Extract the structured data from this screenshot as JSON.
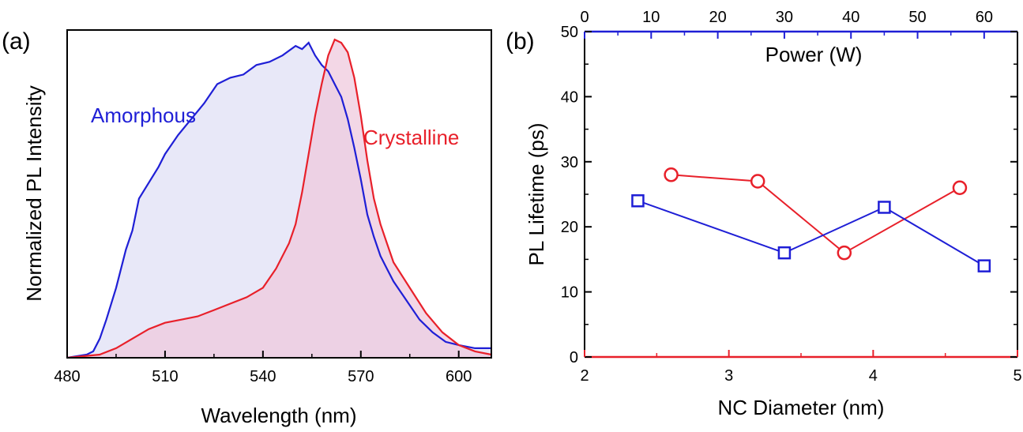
{
  "colors": {
    "blue": "#1f1fd6",
    "red": "#e8202a",
    "amorphous_fill": "#e6e6f7",
    "crystalline_fill": "#efcadd"
  },
  "chart_data": [
    {
      "panel_label": "(a)",
      "type": "area",
      "xlabel": "Wavelength (nm)",
      "ylabel": "Normalized PL Intensity",
      "xlim": [
        480,
        610
      ],
      "ylim": [
        0,
        1.03
      ],
      "x_ticks": [
        480,
        510,
        540,
        570,
        600
      ],
      "y_ticks_shown": false,
      "series": [
        {
          "name": "Amorphous",
          "color": "#1f1fd6",
          "x": [
            480,
            486,
            488,
            490,
            492,
            495,
            498,
            500,
            502,
            505,
            508,
            510,
            514,
            518,
            522,
            526,
            530,
            534,
            538,
            542,
            546,
            550,
            552,
            554,
            556,
            558,
            560,
            562,
            564,
            566,
            568,
            570,
            572,
            574,
            576,
            578,
            580,
            584,
            588,
            592,
            596,
            600,
            605,
            610
          ],
          "y": [
            0.0,
            0.01,
            0.02,
            0.06,
            0.12,
            0.22,
            0.34,
            0.4,
            0.5,
            0.55,
            0.6,
            0.64,
            0.7,
            0.75,
            0.8,
            0.86,
            0.88,
            0.89,
            0.92,
            0.93,
            0.95,
            0.98,
            0.97,
            0.99,
            0.95,
            0.92,
            0.9,
            0.86,
            0.82,
            0.75,
            0.66,
            0.56,
            0.45,
            0.38,
            0.32,
            0.28,
            0.24,
            0.18,
            0.12,
            0.08,
            0.05,
            0.04,
            0.03,
            0.03
          ]
        },
        {
          "name": "Crystalline",
          "color": "#e8202a",
          "x": [
            480,
            490,
            495,
            500,
            505,
            510,
            515,
            520,
            525,
            530,
            535,
            540,
            544,
            548,
            550,
            552,
            554,
            556,
            558,
            560,
            562,
            564,
            566,
            568,
            570,
            572,
            574,
            576,
            578,
            580,
            585,
            590,
            595,
            600,
            605,
            610
          ],
          "y": [
            0.0,
            0.01,
            0.03,
            0.06,
            0.09,
            0.11,
            0.12,
            0.13,
            0.15,
            0.17,
            0.19,
            0.22,
            0.28,
            0.36,
            0.42,
            0.52,
            0.64,
            0.76,
            0.86,
            0.95,
            1.0,
            0.99,
            0.96,
            0.88,
            0.76,
            0.62,
            0.5,
            0.42,
            0.36,
            0.3,
            0.22,
            0.14,
            0.08,
            0.04,
            0.02,
            0.01
          ]
        }
      ]
    },
    {
      "panel_label": "(b)",
      "type": "line",
      "xlabel": "NC Diameter (nm)",
      "x2label": "Power (W)",
      "ylabel": "PL Lifetime (ps)",
      "xlim": [
        2,
        5
      ],
      "x2lim": [
        0,
        65
      ],
      "ylim": [
        0,
        50
      ],
      "x_ticks": [
        2,
        3,
        4,
        5
      ],
      "x2_ticks": [
        0,
        10,
        20,
        30,
        40,
        50,
        60
      ],
      "y_ticks": [
        0,
        10,
        20,
        30,
        40,
        50
      ],
      "series": [
        {
          "axis": "NC Diameter (nm)",
          "marker": "circle",
          "color": "#e8202a",
          "x": [
            2.6,
            3.2,
            3.8,
            4.6
          ],
          "y": [
            28,
            27,
            16,
            26
          ]
        },
        {
          "axis": "Power (W)",
          "marker": "square",
          "color": "#1f1fd6",
          "x": [
            8,
            30,
            45,
            60
          ],
          "y": [
            24,
            16,
            23,
            14
          ]
        }
      ]
    }
  ]
}
